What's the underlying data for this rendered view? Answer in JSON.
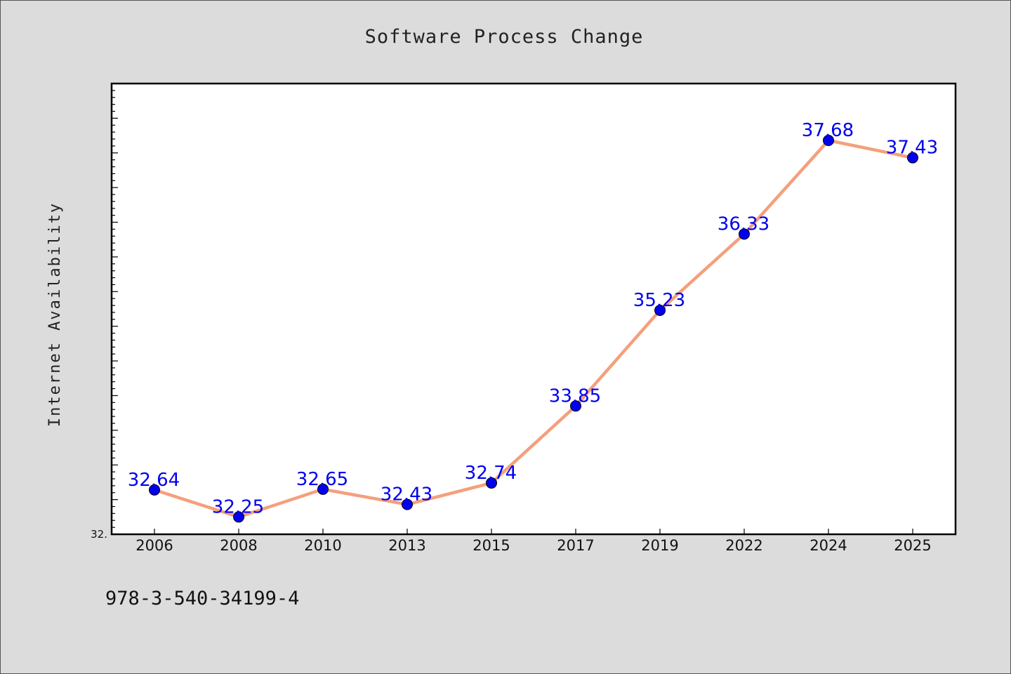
{
  "chart_data": {
    "type": "line",
    "title": "Software Process Change",
    "ylabel": "Internet Availability",
    "xlabel": "",
    "categories": [
      "2006",
      "2008",
      "2010",
      "2013",
      "2015",
      "2017",
      "2019",
      "2022",
      "2024",
      "2025"
    ],
    "series": [
      {
        "values": [
          32.64,
          32.25,
          32.65,
          32.43,
          32.74,
          33.85,
          35.23,
          36.33,
          37.68,
          37.43
        ],
        "labels": [
          "32.64",
          "32.25",
          "32.65",
          "32.43",
          "32.74",
          "33.85",
          "35.23",
          "36.33",
          "37.68",
          "37.43"
        ]
      }
    ],
    "ylim": [
      32.0,
      38.5
    ],
    "ytick_min_label": "32.",
    "grid": false,
    "legend": false,
    "colors": {
      "line": "#f4a07c",
      "marker": "#0000ee",
      "data_label": "#0000ee",
      "plot_bg": "#ffffff",
      "page_bg": "#dcdcdc"
    }
  },
  "footer": {
    "isbn": "978-3-540-34199-4"
  }
}
